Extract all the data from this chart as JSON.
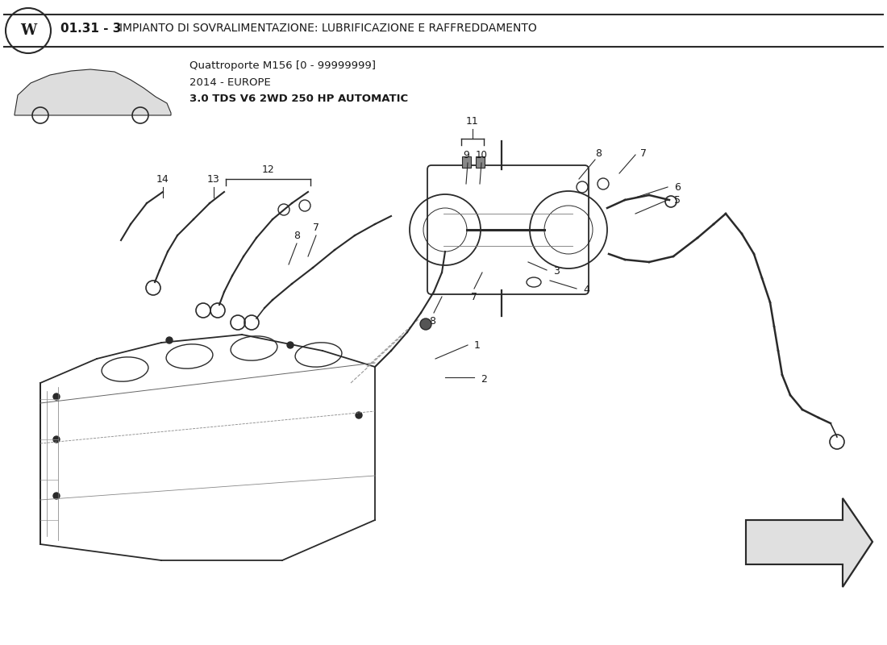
{
  "title_number": "01.31 - 3",
  "title_text": "IMPIANTO DI SOVRALIMENTAZIONE: LUBRIFICAZIONE E RAFFREDDAMENTO",
  "car_model": "Quattroporte M156 [0 - 99999999]",
  "car_year": "2014 - EUROPE",
  "car_engine": "3.0 TDS V6 2WD 250 HP AUTOMATIC",
  "bg_color": "#ffffff",
  "text_color": "#1a1a1a",
  "line_color": "#2a2a2a",
  "fig_width": 11.0,
  "fig_height": 8.0,
  "dpi": 100
}
